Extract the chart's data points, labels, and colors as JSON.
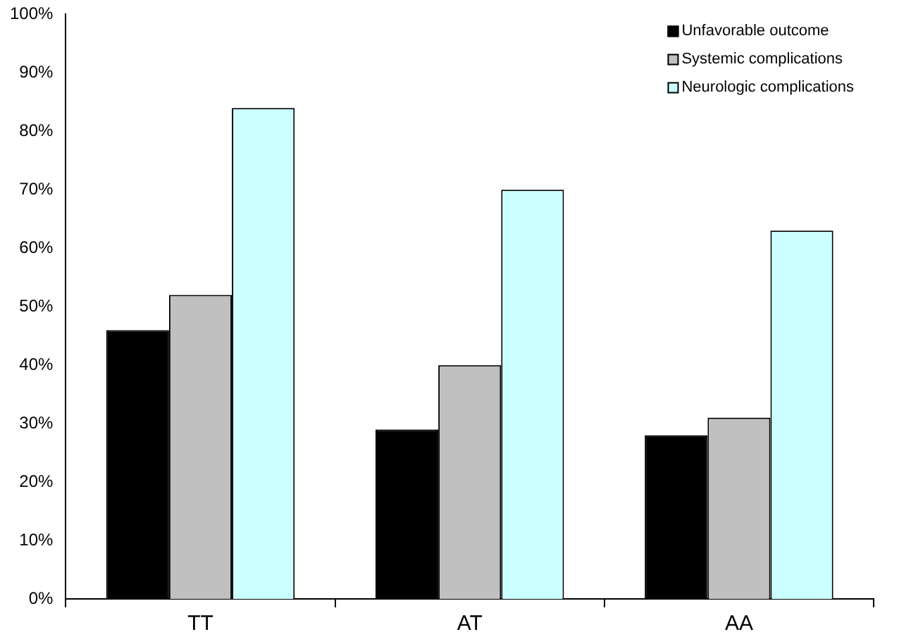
{
  "chart_data": {
    "type": "bar",
    "categories": [
      "TT",
      "AT",
      "AA"
    ],
    "series": [
      {
        "name": "Unfavorable outcome",
        "color": "#000000",
        "values": [
          46,
          29,
          28
        ]
      },
      {
        "name": "Systemic complications",
        "color": "#c0c0c0",
        "values": [
          52,
          40,
          31
        ]
      },
      {
        "name": "Neurologic complications",
        "color": "#ccffff",
        "values": [
          84,
          70,
          63
        ]
      }
    ],
    "ylim": [
      0,
      100
    ],
    "yticks": [
      {
        "value": 0,
        "label": "0%"
      },
      {
        "value": 10,
        "label": "10%"
      },
      {
        "value": 20,
        "label": "20%"
      },
      {
        "value": 30,
        "label": "30%"
      },
      {
        "value": 40,
        "label": "40%"
      },
      {
        "value": 50,
        "label": "50%"
      },
      {
        "value": 60,
        "label": "60%"
      },
      {
        "value": 70,
        "label": "70%"
      },
      {
        "value": 80,
        "label": "80%"
      },
      {
        "value": 90,
        "label": "90%"
      },
      {
        "value": 100,
        "label": "100%"
      }
    ],
    "grid": false,
    "legend": "top right"
  }
}
